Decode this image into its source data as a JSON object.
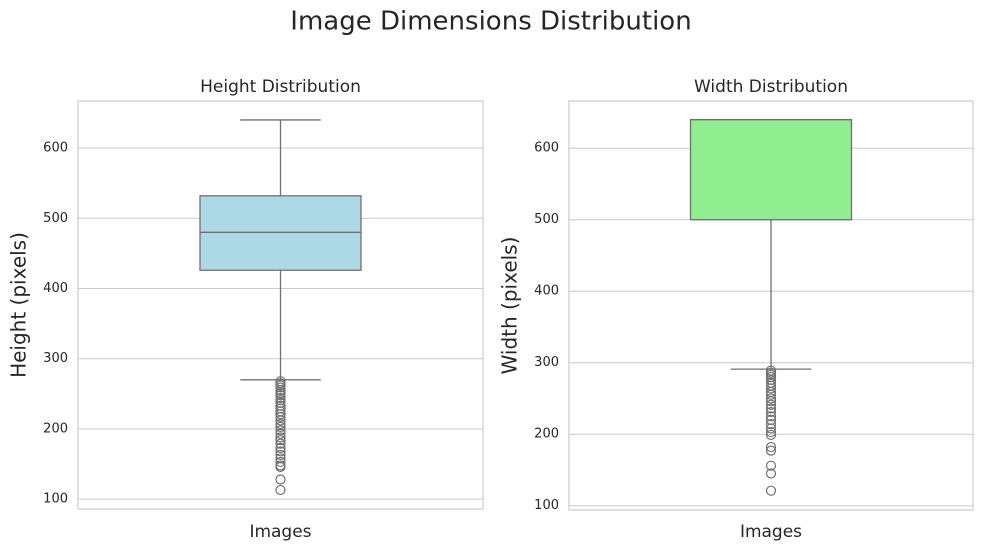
{
  "title": "Image Dimensions Distribution",
  "chart_data": [
    {
      "type": "box",
      "title": "Height Distribution",
      "xlabel": "Images",
      "ylabel": "Height (pixels)",
      "color": "#add8e6",
      "ylim": [
        86,
        667
      ],
      "yticks": [
        100,
        200,
        300,
        400,
        500,
        600
      ],
      "grid": true,
      "box": {
        "whislo": 270,
        "q1": 426,
        "med": 480,
        "q3": 532,
        "whishi": 640,
        "fliers": [
          268,
          265,
          262,
          259,
          255,
          251,
          248,
          244,
          241,
          237,
          233,
          229,
          225,
          221,
          217,
          212,
          207,
          203,
          198,
          193,
          188,
          184,
          179,
          173,
          168,
          163,
          158,
          153,
          148,
          146,
          128,
          113
        ]
      }
    },
    {
      "type": "box",
      "title": "Width Distribution",
      "xlabel": "Images",
      "ylabel": "Width (pixels)",
      "color": "#90ee90",
      "ylim": [
        94,
        666
      ],
      "yticks": [
        100,
        200,
        300,
        400,
        500,
        600
      ],
      "grid": true,
      "box": {
        "whislo": 291,
        "q1": 500,
        "med": 640,
        "q3": 640,
        "whishi": 640,
        "fliers": [
          289,
          286,
          283,
          280,
          276,
          272,
          268,
          264,
          259,
          255,
          250,
          246,
          241,
          236,
          231,
          225,
          220,
          214,
          208,
          203,
          199,
          182,
          177,
          156,
          145,
          121
        ]
      }
    }
  ]
}
